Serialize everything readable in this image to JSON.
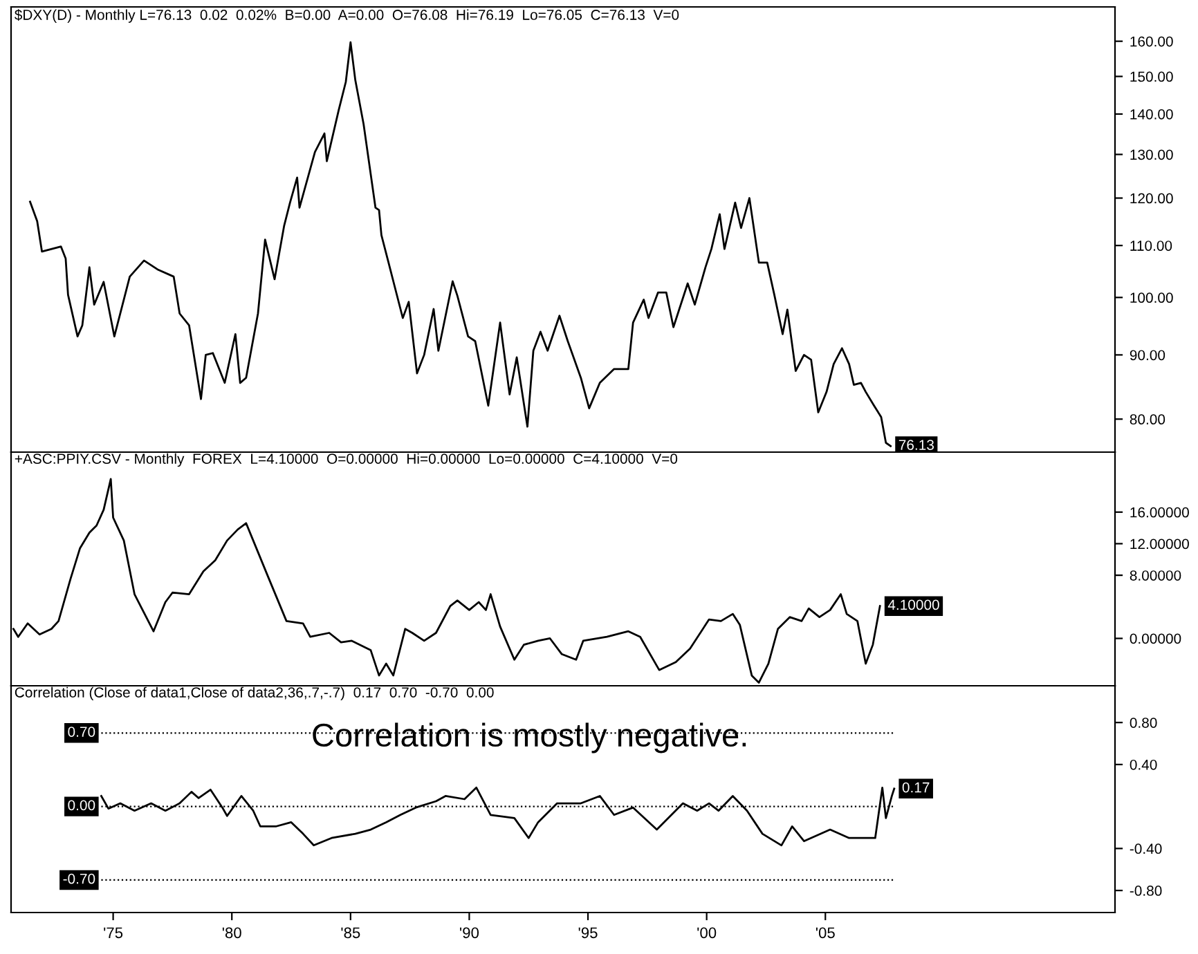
{
  "chart_data": [
    {
      "type": "line",
      "title": "$DXY(D) - Monthly L=76.13  0.02  0.02%  B=0.00  A=0.00  O=76.08  Hi=76.19  Lo=76.05  C=76.13  V=0",
      "log": "y",
      "tick_labels": "y",
      "xlim": [
        1970.7,
        2017.2
      ],
      "ylim": [
        75.3,
        170.4
      ],
      "yticks": [
        {
          "value": 80,
          "label": "80.00"
        },
        {
          "value": 90,
          "label": "90.00"
        },
        {
          "value": 100,
          "label": "100.00"
        },
        {
          "value": 110,
          "label": "110.00"
        },
        {
          "value": 120,
          "label": "120.00"
        },
        {
          "value": 130,
          "label": "130.00"
        },
        {
          "value": 140,
          "label": "140.00"
        },
        {
          "value": 150,
          "label": "150.00"
        },
        {
          "value": 160,
          "label": "160.00"
        }
      ],
      "annotations": [
        {
          "text": "76.13",
          "x": 2007.75,
          "y": 76.13
        }
      ],
      "series": [
        {
          "color": "#000000",
          "x": [
            1971.5,
            1971.8,
            1972.0,
            1972.8,
            1973.0,
            1973.1,
            1973.5,
            1973.7,
            1974.0,
            1974.2,
            1974.6,
            1975.05,
            1975.7,
            1976.3,
            1976.9,
            1977.55,
            1977.8,
            1978.2,
            1978.7,
            1978.9,
            1979.2,
            1979.7,
            1980.15,
            1980.35,
            1980.6,
            1981.1,
            1981.4,
            1981.8,
            1982.2,
            1982.45,
            1982.75,
            1982.85,
            1983.5,
            1983.9,
            1984.0,
            1984.5,
            1984.8,
            1985.0,
            1985.2,
            1985.55,
            1986.05,
            1986.2,
            1986.3,
            1986.6,
            1987.2,
            1987.45,
            1987.8,
            1988.1,
            1988.5,
            1988.7,
            1989.3,
            1989.5,
            1989.95,
            1990.25,
            1990.8,
            1991.3,
            1991.7,
            1992.0,
            1992.45,
            1992.7,
            1993.0,
            1993.3,
            1993.8,
            1994.15,
            1994.7,
            1995.05,
            1995.5,
            1996.1,
            1996.7,
            1996.9,
            1997.35,
            1997.55,
            1997.95,
            1998.3,
            1998.6,
            1999.2,
            1999.5,
            1999.95,
            2000.2,
            2000.55,
            2000.75,
            2001.2,
            2001.45,
            2001.8,
            2002.2,
            2002.55,
            2002.85,
            2003.2,
            2003.4,
            2003.75,
            2004.1,
            2004.4,
            2004.7,
            2005.05,
            2005.35,
            2005.7,
            2006.0,
            2006.2,
            2006.5,
            2006.7,
            2007.05,
            2007.35,
            2007.55,
            2007.75
          ],
          "values": [
            119.2,
            115,
            108.8,
            109.8,
            107.4,
            100.5,
            93.1,
            95,
            105.7,
            98.7,
            102.9,
            93.1,
            103.9,
            107.0,
            105.2,
            103.9,
            97.1,
            95,
            83.0,
            90.0,
            90.3,
            85.5,
            93.5,
            85.5,
            86.3,
            97.1,
            111.2,
            103.4,
            114,
            119,
            124.6,
            117.9,
            130.6,
            135.1,
            128.4,
            141,
            148.5,
            159.7,
            149,
            137.4,
            117.9,
            117.4,
            112.1,
            106.6,
            96.3,
            99.2,
            87,
            90.0,
            97.9,
            90.7,
            103,
            100.3,
            93.1,
            92.3,
            82,
            95.5,
            83.7,
            89.6,
            78.9,
            90.7,
            93.9,
            90.7,
            96.7,
            92.3,
            86.3,
            81.6,
            85.5,
            87.7,
            87.7,
            95.5,
            99.6,
            96.3,
            100.9,
            100.9,
            94.7,
            102.6,
            98.7,
            105.7,
            109.3,
            116.5,
            109.3,
            119,
            113.6,
            120,
            106.6,
            106.6,
            100.5,
            93.5,
            97.8,
            87.4,
            90,
            89.2,
            81,
            84.1,
            88.5,
            91.1,
            88.5,
            85.2,
            85.5,
            84.1,
            82,
            80.3,
            76.6,
            76.13
          ]
        }
      ]
    },
    {
      "type": "line",
      "title": "+ASC:PPIY.CSV - Monthly  FOREX  L=4.10000  O=0.00000  Hi=0.00000  Lo=0.00000  C=4.10000  V=0",
      "tick_labels": "y",
      "xlim": [
        1970.7,
        2017.2
      ],
      "ylim": [
        -6.0,
        23.6
      ],
      "yticks": [
        {
          "value": 0,
          "label": "0.00000"
        },
        {
          "value": 8,
          "label": "8.00000"
        },
        {
          "value": 12,
          "label": "12.00000"
        },
        {
          "value": 16,
          "label": "16.00000"
        }
      ],
      "annotations": [
        {
          "text": "4.10000",
          "x": 2007.3,
          "y": 4.1
        }
      ],
      "series": [
        {
          "color": "#000000",
          "x": [
            1970.8,
            1971.0,
            1971.4,
            1971.9,
            1972.4,
            1972.7,
            1973.2,
            1973.6,
            1974.0,
            1974.3,
            1974.6,
            1974.9,
            1975.0,
            1975.45,
            1975.9,
            1976.7,
            1977.2,
            1977.5,
            1978.2,
            1978.8,
            1979.3,
            1979.8,
            1980.25,
            1980.6,
            1980.9,
            1981.5,
            1982.3,
            1983.0,
            1983.3,
            1984.1,
            1984.6,
            1985.05,
            1985.85,
            1986.2,
            1986.5,
            1986.8,
            1987.3,
            1987.6,
            1988.1,
            1988.6,
            1989.2,
            1989.5,
            1990.0,
            1990.4,
            1990.7,
            1990.9,
            1991.3,
            1991.9,
            1992.3,
            1992.9,
            1993.4,
            1993.9,
            1994.5,
            1994.8,
            1995.8,
            1996.7,
            1997.2,
            1998.0,
            1998.7,
            1999.3,
            2000.1,
            2000.6,
            2001.1,
            2001.4,
            2001.9,
            2002.2,
            2002.6,
            2003.0,
            2003.5,
            2004.0,
            2004.3,
            2004.75,
            2005.2,
            2005.65,
            2005.9,
            2006.35,
            2006.7,
            2007.0,
            2007.3
          ],
          "values": [
            1.2,
            0.2,
            1.9,
            0.5,
            1.2,
            2.2,
            7.5,
            11.4,
            13.4,
            14.3,
            16.3,
            20.2,
            15.3,
            12.4,
            5.6,
            0.9,
            4.6,
            5.8,
            5.6,
            8.5,
            9.9,
            12.4,
            13.8,
            14.6,
            12.4,
            8.0,
            2.2,
            1.9,
            0.2,
            0.7,
            -0.5,
            -0.3,
            -1.5,
            -4.7,
            -3.2,
            -4.7,
            1.2,
            0.7,
            -0.3,
            0.7,
            4.1,
            4.8,
            3.6,
            4.6,
            3.6,
            5.6,
            1.5,
            -2.7,
            -0.8,
            -0.3,
            0.0,
            -2.0,
            -2.7,
            -0.3,
            0.2,
            0.9,
            0.2,
            -4.0,
            -3.0,
            -1.3,
            2.4,
            2.2,
            3.1,
            1.7,
            -4.7,
            -5.6,
            -3.2,
            1.2,
            2.7,
            2.2,
            3.8,
            2.7,
            3.6,
            5.6,
            3.1,
            2.2,
            -3.2,
            -0.8,
            4.1
          ]
        }
      ]
    },
    {
      "type": "line",
      "title": "Correlation (Close of data1,Close of data2,36,.7,-.7)  0.17  0.70  -0.70  0.00",
      "xlim": [
        1970.7,
        2017.2
      ],
      "xticks": [
        {
          "value": 1975,
          "label": "'75"
        },
        {
          "value": 1980,
          "label": "'80"
        },
        {
          "value": 1985,
          "label": "'85"
        },
        {
          "value": 1990,
          "label": "'90"
        },
        {
          "value": 1995,
          "label": "'95"
        },
        {
          "value": 2000,
          "label": "'00"
        },
        {
          "value": 2005,
          "label": "'05"
        }
      ],
      "ylim": [
        -1.01,
        1.15
      ],
      "yticks": [
        {
          "value": -0.8,
          "label": "-0.80"
        },
        {
          "value": -0.4,
          "label": "-0.40"
        },
        {
          "value": 0.4,
          "label": "0.40"
        },
        {
          "value": 0.8,
          "label": "0.80"
        }
      ],
      "ref_lines": [
        {
          "axis": "y",
          "value": 0.7,
          "label": "0.70",
          "line_style": "dotted"
        },
        {
          "axis": "y",
          "value": 0.0,
          "label": "0.00",
          "line_style": "dotted"
        },
        {
          "axis": "y",
          "value": -0.7,
          "label": "-0.70",
          "line_style": "dotted"
        }
      ],
      "annotations": [
        {
          "text": "0.17",
          "x": 2007.9,
          "y": 0.17
        },
        "Correlation is mostly negative."
      ],
      "series": [
        {
          "color": "#000000",
          "x": [
            1974.5,
            1974.8,
            1975.3,
            1975.9,
            1976.6,
            1977.2,
            1977.8,
            1978.3,
            1978.6,
            1979.1,
            1979.6,
            1979.8,
            1980.4,
            1980.9,
            1981.2,
            1981.85,
            1982.5,
            1983.0,
            1983.45,
            1984.2,
            1985.2,
            1985.85,
            1986.5,
            1987.1,
            1987.75,
            1988.6,
            1989.0,
            1989.8,
            1990.3,
            1990.9,
            1991.9,
            1992.5,
            1992.9,
            1993.7,
            1994.7,
            1995.5,
            1996.1,
            1996.9,
            1997.9,
            1999.0,
            1999.6,
            2000.1,
            2000.5,
            2001.1,
            2001.7,
            2002.35,
            2003.15,
            2003.6,
            2004.1,
            2005.2,
            2006.0,
            2007.1,
            2007.4,
            2007.55,
            2007.8,
            2007.9
          ],
          "values": [
            0.1,
            -0.02,
            0.03,
            -0.04,
            0.03,
            -0.04,
            0.03,
            0.14,
            0.08,
            0.16,
            -0.01,
            -0.09,
            0.1,
            -0.04,
            -0.19,
            -0.19,
            -0.15,
            -0.26,
            -0.37,
            -0.3,
            -0.26,
            -0.22,
            -0.15,
            -0.08,
            -0.01,
            0.05,
            0.1,
            0.07,
            0.18,
            -0.08,
            -0.11,
            -0.3,
            -0.15,
            0.03,
            0.03,
            0.1,
            -0.08,
            -0.01,
            -0.22,
            0.03,
            -0.04,
            0.03,
            -0.04,
            0.1,
            -0.04,
            -0.26,
            -0.37,
            -0.19,
            -0.33,
            -0.22,
            -0.3,
            -0.3,
            0.18,
            -0.11,
            0.1,
            0.17
          ]
        }
      ]
    }
  ]
}
